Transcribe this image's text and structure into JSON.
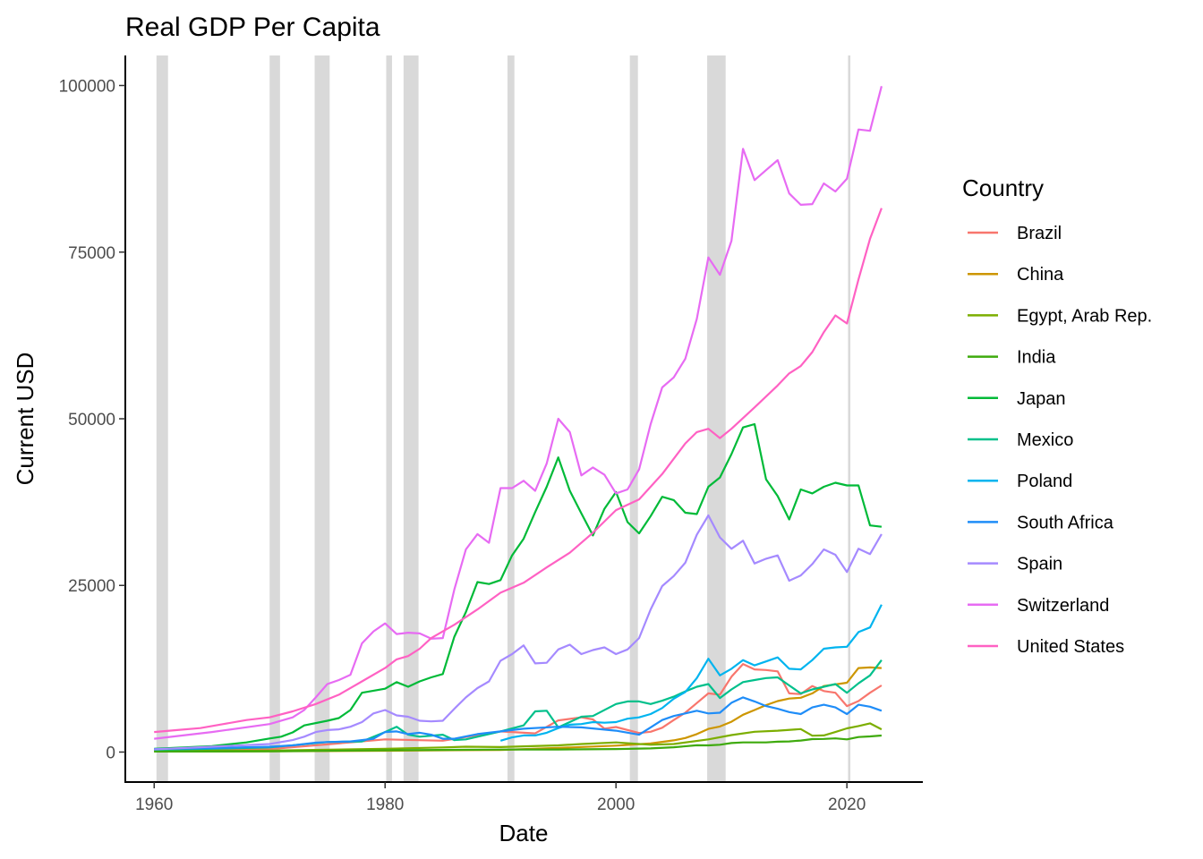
{
  "chart_data": {
    "type": "line",
    "title": "Real GDP Per Capita",
    "xlabel": "Date",
    "ylabel": "Current USD",
    "xlim": [
      1957.5,
      2026.5
    ],
    "ylim": [
      -4500,
      104500
    ],
    "x_ticks": [
      1960,
      1980,
      2000,
      2020
    ],
    "x_tick_labels": [
      "1960",
      "1980",
      "2000",
      "2020"
    ],
    "y_ticks": [
      0,
      25000,
      50000,
      75000,
      100000
    ],
    "y_tick_labels": [
      "0",
      "25000",
      "50000",
      "75000",
      "100000"
    ],
    "legend_title": "Country",
    "legend_position": "right",
    "recessions": [
      [
        1960.2,
        1961.2
      ],
      [
        1970.0,
        1970.9
      ],
      [
        1973.9,
        1975.2
      ],
      [
        1980.1,
        1980.6
      ],
      [
        1981.6,
        1982.9
      ],
      [
        1990.6,
        1991.2
      ],
      [
        2001.2,
        2001.9
      ],
      [
        2007.9,
        2009.5
      ],
      [
        2020.1,
        2020.3
      ]
    ],
    "series": [
      {
        "name": "Brazil",
        "color": "#F8766D",
        "x": [
          1960,
          1965,
          1970,
          1975,
          1980,
          1985,
          1990,
          1993,
          1995,
          1997,
          1998,
          1999,
          2000,
          2002,
          2003,
          2004,
          2005,
          2006,
          2007,
          2008,
          2009,
          2010,
          2011,
          2012,
          2013,
          2014,
          2015,
          2016,
          2017,
          2018,
          2019,
          2020,
          2021,
          2022,
          2023
        ],
        "y": [
          200,
          260,
          440,
          1150,
          1900,
          1700,
          3100,
          2800,
          4750,
          5200,
          4900,
          3500,
          3750,
          2850,
          3050,
          3650,
          4800,
          5900,
          7350,
          8800,
          8600,
          11300,
          13200,
          12400,
          12300,
          12100,
          8800,
          8700,
          9900,
          9150,
          8900,
          6900,
          7650,
          8900,
          10000
        ]
      },
      {
        "name": "China",
        "color": "#CD9600",
        "x": [
          1960,
          1970,
          1980,
          1990,
          1995,
          2000,
          2003,
          2005,
          2006,
          2007,
          2008,
          2009,
          2010,
          2011,
          2012,
          2013,
          2014,
          2015,
          2016,
          2017,
          2018,
          2019,
          2020,
          2021,
          2022,
          2023
        ],
        "y": [
          90,
          110,
          195,
          320,
          610,
          960,
          1290,
          1750,
          2100,
          2700,
          3470,
          3830,
          4550,
          5600,
          6300,
          7050,
          7650,
          8030,
          8150,
          8800,
          9900,
          10150,
          10400,
          12600,
          12700,
          12600
        ]
      },
      {
        "name": "Egypt, Arab Rep.",
        "color": "#7CAE00",
        "x": [
          1960,
          1970,
          1975,
          1980,
          1985,
          1987,
          1990,
          1995,
          1997,
          2000,
          2003,
          2005,
          2008,
          2010,
          2012,
          2014,
          2016,
          2017,
          2018,
          2019,
          2020,
          2021,
          2022,
          2023
        ],
        "y": [
          150,
          230,
          340,
          500,
          700,
          800,
          750,
          1000,
          1200,
          1450,
          1100,
          1200,
          1900,
          2550,
          3050,
          3200,
          3450,
          2450,
          2500,
          3000,
          3550,
          3900,
          4300,
          3400
        ]
      },
      {
        "name": "India",
        "color": "#3EAA0D",
        "x": [
          1960,
          1970,
          1980,
          1990,
          1995,
          2000,
          2003,
          2005,
          2007,
          2008,
          2009,
          2010,
          2011,
          2012,
          2013,
          2014,
          2015,
          2016,
          2017,
          2018,
          2019,
          2020,
          2021,
          2022,
          2023
        ],
        "y": [
          80,
          110,
          270,
          370,
          380,
          450,
          550,
          720,
          1020,
          1000,
          1100,
          1350,
          1450,
          1450,
          1450,
          1550,
          1600,
          1730,
          1950,
          1970,
          2050,
          1900,
          2250,
          2350,
          2480
        ]
      },
      {
        "name": "Japan",
        "color": "#00BA38",
        "x": [
          1960,
          1965,
          1968,
          1970,
          1971,
          1972,
          1973,
          1975,
          1976,
          1977,
          1978,
          1979,
          1980,
          1981,
          1982,
          1983,
          1984,
          1985,
          1986,
          1987,
          1988,
          1989,
          1990,
          1991,
          1992,
          1993,
          1994,
          1995,
          1996,
          1997,
          1998,
          1999,
          2000,
          2001,
          2002,
          2003,
          2004,
          2005,
          2006,
          2007,
          2008,
          2009,
          2010,
          2011,
          2012,
          2013,
          2014,
          2015,
          2016,
          2017,
          2018,
          2019,
          2020,
          2021,
          2022,
          2023
        ],
        "y": [
          480,
          900,
          1450,
          2040,
          2300,
          2950,
          4000,
          4700,
          5100,
          6300,
          8900,
          9200,
          9500,
          10500,
          9800,
          10600,
          11200,
          11700,
          17300,
          21000,
          25500,
          25200,
          25800,
          29500,
          32000,
          36000,
          39800,
          44200,
          39200,
          35800,
          32500,
          36500,
          39000,
          34500,
          32800,
          35400,
          38300,
          37800,
          35900,
          35700,
          39800,
          41200,
          44700,
          48700,
          49200,
          40900,
          38400,
          34900,
          39400,
          38800,
          39800,
          40400,
          40000,
          40000,
          34000,
          33800
        ]
      },
      {
        "name": "Mexico",
        "color": "#00C08B",
        "x": [
          1960,
          1965,
          1970,
          1975,
          1978,
          1980,
          1981,
          1982,
          1983,
          1985,
          1986,
          1987,
          1990,
          1992,
          1993,
          1994,
          1995,
          1997,
          1998,
          2000,
          2001,
          2002,
          2003,
          2004,
          2005,
          2006,
          2007,
          2008,
          2009,
          2010,
          2011,
          2012,
          2013,
          2014,
          2015,
          2016,
          2017,
          2018,
          2019,
          2020,
          2021,
          2022,
          2023
        ],
        "y": [
          350,
          500,
          700,
          1500,
          1600,
          3000,
          3800,
          2600,
          2300,
          2600,
          1800,
          1900,
          3100,
          4000,
          6100,
          6200,
          3700,
          5300,
          5400,
          7200,
          7600,
          7600,
          7200,
          7700,
          8300,
          9100,
          9800,
          10200,
          8100,
          9400,
          10500,
          10800,
          11100,
          11200,
          10000,
          8800,
          9400,
          9800,
          10200,
          8900,
          10300,
          11500,
          13800
        ]
      },
      {
        "name": "Poland",
        "color": "#00B4EF",
        "x": [
          1990,
          1991,
          1992,
          1993,
          1994,
          1995,
          1996,
          1997,
          1998,
          1999,
          2000,
          2001,
          2002,
          2003,
          2004,
          2005,
          2006,
          2007,
          2008,
          2009,
          2010,
          2011,
          2012,
          2013,
          2014,
          2015,
          2016,
          2017,
          2018,
          2019,
          2020,
          2021,
          2022,
          2023
        ],
        "y": [
          1700,
          2200,
          2500,
          2500,
          2900,
          3600,
          4100,
          4200,
          4500,
          4400,
          4500,
          5000,
          5200,
          5700,
          6600,
          8000,
          9000,
          11100,
          14000,
          11500,
          12500,
          13800,
          13000,
          13600,
          14200,
          12500,
          12400,
          13800,
          15500,
          15700,
          15800,
          18000,
          18700,
          22100
        ]
      },
      {
        "name": "South Africa",
        "color": "#1F8DF8",
        "x": [
          1960,
          1965,
          1970,
          1972,
          1974,
          1975,
          1977,
          1979,
          1980,
          1981,
          1982,
          1983,
          1984,
          1985,
          1986,
          1988,
          1990,
          1992,
          1995,
          1997,
          2000,
          2002,
          2003,
          2004,
          2005,
          2006,
          2007,
          2008,
          2009,
          2010,
          2011,
          2012,
          2013,
          2014,
          2015,
          2016,
          2017,
          2018,
          2019,
          2020,
          2021,
          2022,
          2023
        ],
        "y": [
          450,
          600,
          800,
          1000,
          1400,
          1500,
          1600,
          2000,
          3000,
          3100,
          2700,
          2900,
          2600,
          2000,
          2000,
          2700,
          3100,
          3500,
          3800,
          3700,
          3200,
          2600,
          3700,
          4800,
          5400,
          5800,
          6200,
          5800,
          5900,
          7400,
          8200,
          7600,
          6900,
          6500,
          6000,
          5700,
          6700,
          7100,
          6700,
          5700,
          7100,
          6800,
          6200
        ]
      },
      {
        "name": "Spain",
        "color": "#A58AFF",
        "x": [
          1960,
          1965,
          1970,
          1972,
          1973,
          1974,
          1975,
          1976,
          1977,
          1978,
          1979,
          1980,
          1981,
          1982,
          1983,
          1984,
          1985,
          1986,
          1987,
          1988,
          1989,
          1990,
          1991,
          1992,
          1993,
          1994,
          1995,
          1996,
          1997,
          1998,
          1999,
          2000,
          2001,
          2002,
          2003,
          2004,
          2005,
          2006,
          2007,
          2008,
          2009,
          2010,
          2011,
          2012,
          2013,
          2014,
          2015,
          2016,
          2017,
          2018,
          2019,
          2020,
          2021,
          2022,
          2023
        ],
        "y": [
          400,
          800,
          1200,
          1800,
          2300,
          3000,
          3300,
          3400,
          3800,
          4500,
          5800,
          6300,
          5500,
          5300,
          4700,
          4600,
          4700,
          6500,
          8200,
          9600,
          10600,
          13700,
          14700,
          16000,
          13300,
          13400,
          15400,
          16100,
          14700,
          15300,
          15700,
          14700,
          15400,
          17100,
          21400,
          24900,
          26400,
          28400,
          32600,
          35500,
          32200,
          30500,
          31700,
          28300,
          29000,
          29500,
          25700,
          26500,
          28200,
          30400,
          29600,
          27000,
          30500,
          29700,
          32700
        ]
      },
      {
        "name": "Switzerland",
        "color": "#E76BF3",
        "x": [
          1960,
          1965,
          1970,
          1972,
          1973,
          1974,
          1975,
          1976,
          1977,
          1978,
          1979,
          1980,
          1981,
          1982,
          1983,
          1984,
          1985,
          1986,
          1987,
          1988,
          1989,
          1990,
          1991,
          1992,
          1993,
          1994,
          1995,
          1996,
          1997,
          1998,
          1999,
          2000,
          2001,
          2002,
          2003,
          2004,
          2005,
          2006,
          2007,
          2008,
          2009,
          2010,
          2011,
          2012,
          2013,
          2014,
          2015,
          2016,
          2017,
          2018,
          2019,
          2020,
          2021,
          2022,
          2023
        ],
        "y": [
          2000,
          3000,
          4200,
          5200,
          6300,
          8200,
          10200,
          10800,
          11600,
          16300,
          18100,
          19300,
          17700,
          17900,
          17800,
          17000,
          17100,
          24400,
          30400,
          32700,
          31400,
          39600,
          39600,
          40700,
          39200,
          43300,
          50000,
          48000,
          41500,
          42700,
          41600,
          38800,
          39400,
          42400,
          49200,
          54700,
          56200,
          59000,
          65000,
          74200,
          71600,
          76700,
          90500,
          85800,
          87300,
          88800,
          83800,
          82100,
          82200,
          85300,
          84100,
          86000,
          93400,
          93200,
          99900
        ]
      },
      {
        "name": "United States",
        "color": "#FF61C3",
        "x": [
          1960,
          1962,
          1964,
          1966,
          1968,
          1970,
          1972,
          1974,
          1976,
          1978,
          1980,
          1981,
          1982,
          1983,
          1984,
          1986,
          1988,
          1990,
          1992,
          1994,
          1996,
          1998,
          2000,
          2002,
          2004,
          2006,
          2007,
          2008,
          2009,
          2010,
          2012,
          2014,
          2015,
          2016,
          2017,
          2018,
          2019,
          2020,
          2021,
          2022,
          2023
        ],
        "y": [
          3000,
          3300,
          3600,
          4200,
          4800,
          5200,
          6100,
          7200,
          8600,
          10600,
          12600,
          13900,
          14400,
          15500,
          17100,
          19100,
          21400,
          23900,
          25400,
          27700,
          29900,
          32900,
          36300,
          37900,
          41700,
          46300,
          48000,
          48500,
          47100,
          48500,
          51700,
          55000,
          56800,
          57900,
          60000,
          63000,
          65500,
          64300,
          70900,
          77000,
          81600
        ]
      }
    ]
  }
}
